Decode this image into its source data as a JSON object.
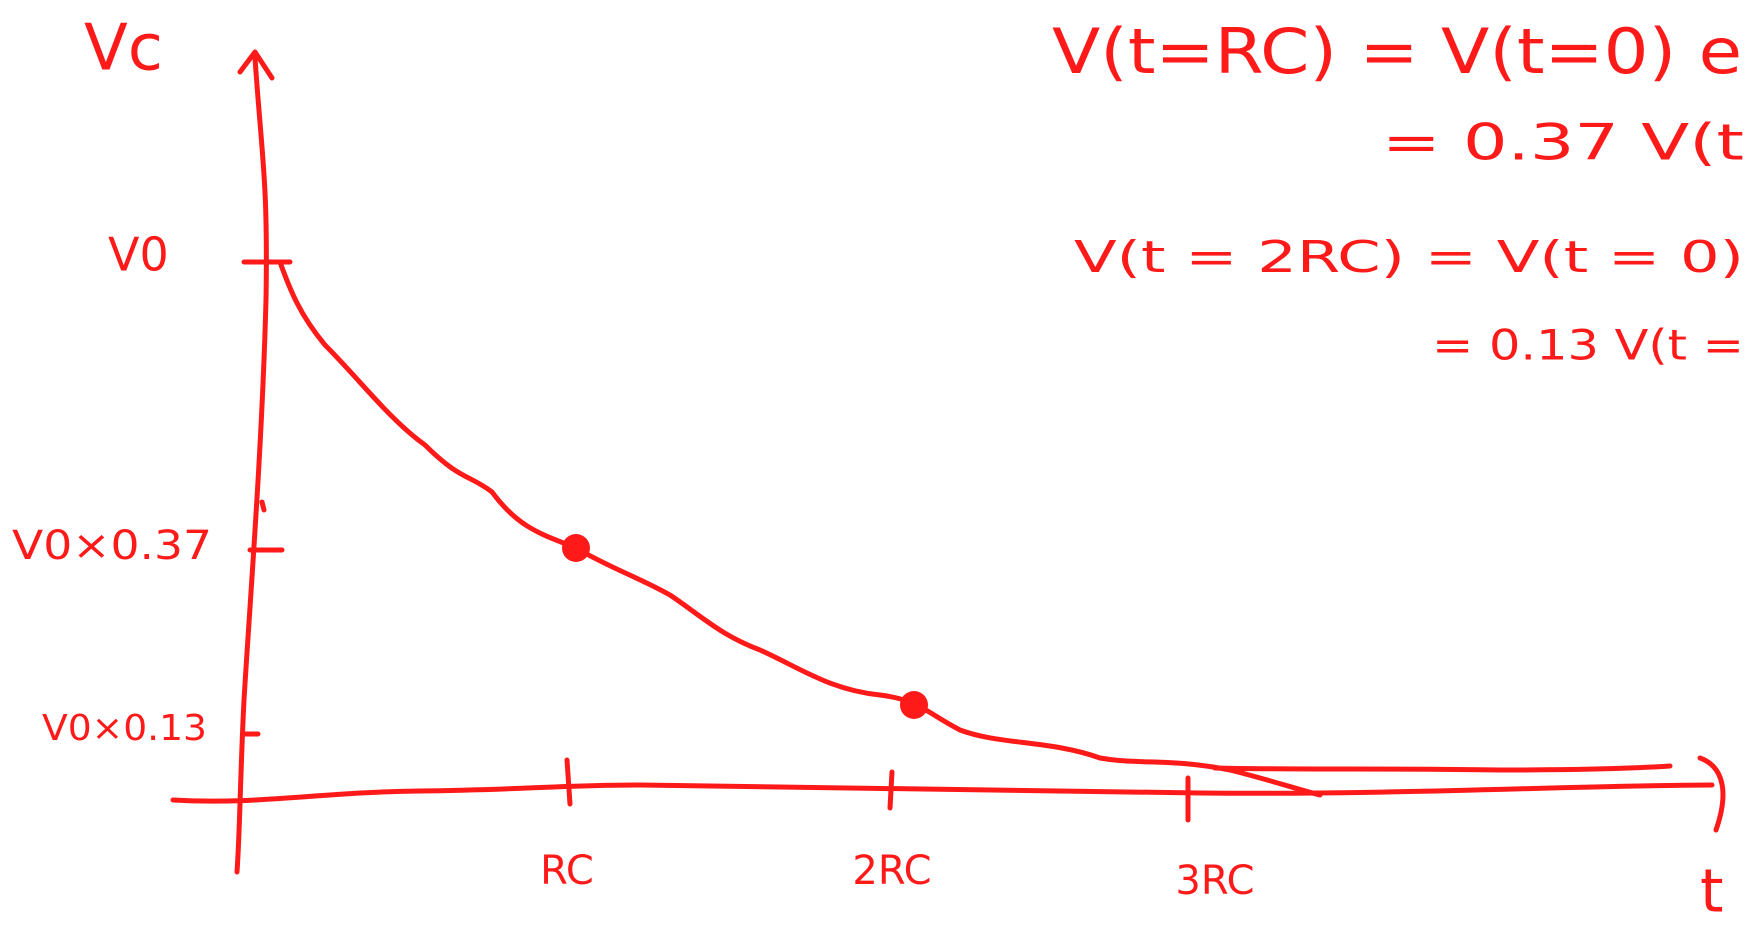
{
  "axes": {
    "y_label": "Vc",
    "x_label": "t",
    "y_ticks": [
      "V0",
      "V0×0.37",
      "V0×0.13"
    ],
    "x_ticks": [
      "RC",
      "2RC",
      "3RC"
    ]
  },
  "equations": [
    "V(t=RC) = V(t=0) e",
    "= 0.37 V(t",
    "V(t = 2RC) = V(t = 0)",
    "= 0.13 V(t ="
  ]
}
